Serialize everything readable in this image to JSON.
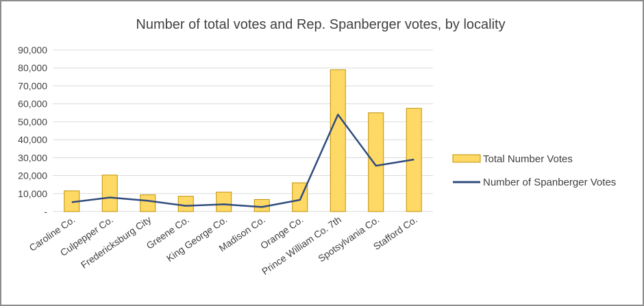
{
  "chart_data": {
    "type": "bar",
    "title": "Number of total votes and Rep. Spanberger votes, by locality",
    "xlabel": "",
    "ylabel": "",
    "ylim": [
      0,
      90000
    ],
    "yticks": [
      0,
      10000,
      20000,
      30000,
      40000,
      50000,
      60000,
      70000,
      80000,
      90000
    ],
    "ytick_labels": [
      "-",
      "10,000",
      "20,000",
      "30,000",
      "40,000",
      "50,000",
      "60,000",
      "70,000",
      "80,000",
      "90,000"
    ],
    "categories": [
      "Caroline Co.",
      "Culpepper Co.",
      "Fredericksburg City",
      "Greene Co.",
      "King George Co.",
      "Madison Co.",
      "Orange Co.",
      "Prince William Co. 7th",
      "Spotsylvania Co.",
      "Stafford Co."
    ],
    "grid": true,
    "legend": "right",
    "series": [
      {
        "name": "Total Number Votes",
        "type": "bar",
        "color": "#FFD966",
        "edge_color": "#BF9000",
        "values": [
          11500,
          20300,
          9300,
          8500,
          10800,
          6700,
          16000,
          79000,
          55000,
          57500
        ]
      },
      {
        "name": "Number of Spanberger Votes",
        "type": "line",
        "color": "#2F4B7C",
        "values": [
          5200,
          7800,
          6000,
          3200,
          4000,
          2500,
          6500,
          54000,
          25500,
          29000
        ]
      }
    ]
  }
}
